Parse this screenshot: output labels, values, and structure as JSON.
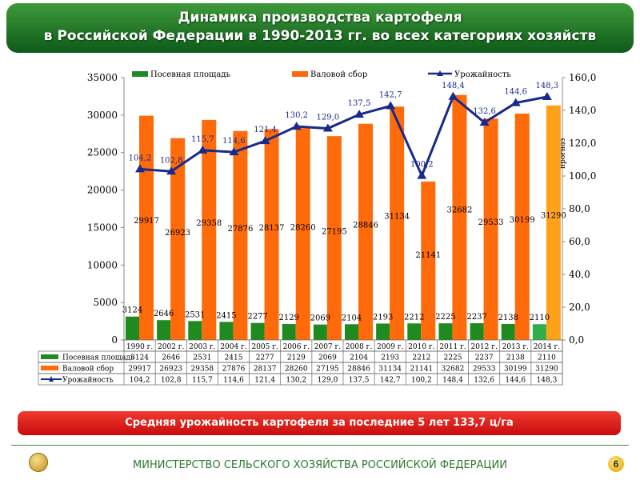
{
  "header": {
    "title_line1": "Динамика производства картофеля",
    "title_line2": "в Российской Федерации в 1990-2013 гг. во всех категориях хозяйств"
  },
  "chart_data": {
    "type": "bar",
    "categories": [
      "1990 г.",
      "2002 г.",
      "2003 г.",
      "2004 г.",
      "2005 г.",
      "2006 г.",
      "2007 г.",
      "2008 г.",
      "2009 г.",
      "2010 г.",
      "2011 г.",
      "2012 г.",
      "2013 г.",
      "2014 г."
    ],
    "series": [
      {
        "name": "Посевная площадь",
        "type": "bar",
        "axis": "left",
        "color": "#1f8a1f",
        "values": [
          3124,
          2646,
          2531,
          2415,
          2277,
          2129,
          2069,
          2104,
          2193,
          2212,
          2225,
          2237,
          2138,
          2110
        ],
        "labels": [
          "3124",
          "2646",
          "2531",
          "2415",
          "2277",
          "2129",
          "2069",
          "2104",
          "2193",
          "2212",
          "2225",
          "2237",
          "2138",
          "2110"
        ]
      },
      {
        "name": "Валовой сбор",
        "type": "bar",
        "axis": "left",
        "color": "#ff6a0a",
        "values": [
          29917,
          26923,
          29358,
          27876,
          28137,
          28260,
          27195,
          28846,
          31134,
          21141,
          32682,
          29533,
          30199,
          31290
        ],
        "labels": [
          "29917",
          "26923",
          "29358",
          "27876",
          "28137",
          "28260",
          "27195",
          "28846",
          "31134",
          "21141",
          "32682",
          "29533",
          "30199",
          "31290"
        ]
      },
      {
        "name": "Урожайность",
        "type": "line",
        "axis": "right",
        "color": "#1a2a8a",
        "values": [
          104.2,
          102.8,
          115.7,
          114.6,
          121.4,
          130.2,
          129.0,
          137.5,
          142.7,
          100.2,
          148.4,
          132.6,
          144.6,
          148.3
        ],
        "labels": [
          "104,2",
          "102,8",
          "115,7",
          "114,6",
          "121,4",
          "130,2",
          "129,0",
          "137,5",
          "142,7",
          "100,2",
          "148,4",
          "132,6",
          "144,6",
          "148,3"
        ]
      }
    ],
    "forecast_label": "прогноз",
    "forecast_colors": {
      "green": "#2fae4a",
      "orange": "#ffa21a"
    },
    "y_left": {
      "min": 0,
      "max": 35000,
      "step": 5000,
      "ticks": [
        "0",
        "5000",
        "10000",
        "15000",
        "20000",
        "25000",
        "30000",
        "35000"
      ]
    },
    "y_right": {
      "min": 0,
      "max": 160,
      "step": 20,
      "ticks": [
        "0,0",
        "20,0",
        "40,0",
        "60,0",
        "80,0",
        "100,0",
        "120,0",
        "140,0",
        "160,0"
      ]
    },
    "legend_position": "top",
    "grid": false
  },
  "footer": {
    "note": "Средняя урожайность картофеля за последние 5 лет 133,7 ц/га",
    "ministry": "МИНИСТЕРСТВО СЕЛЬСКОГО ХОЗЯЙСТВА РОССИЙСКОЙ ФЕДЕРАЦИИ",
    "page": "6"
  }
}
